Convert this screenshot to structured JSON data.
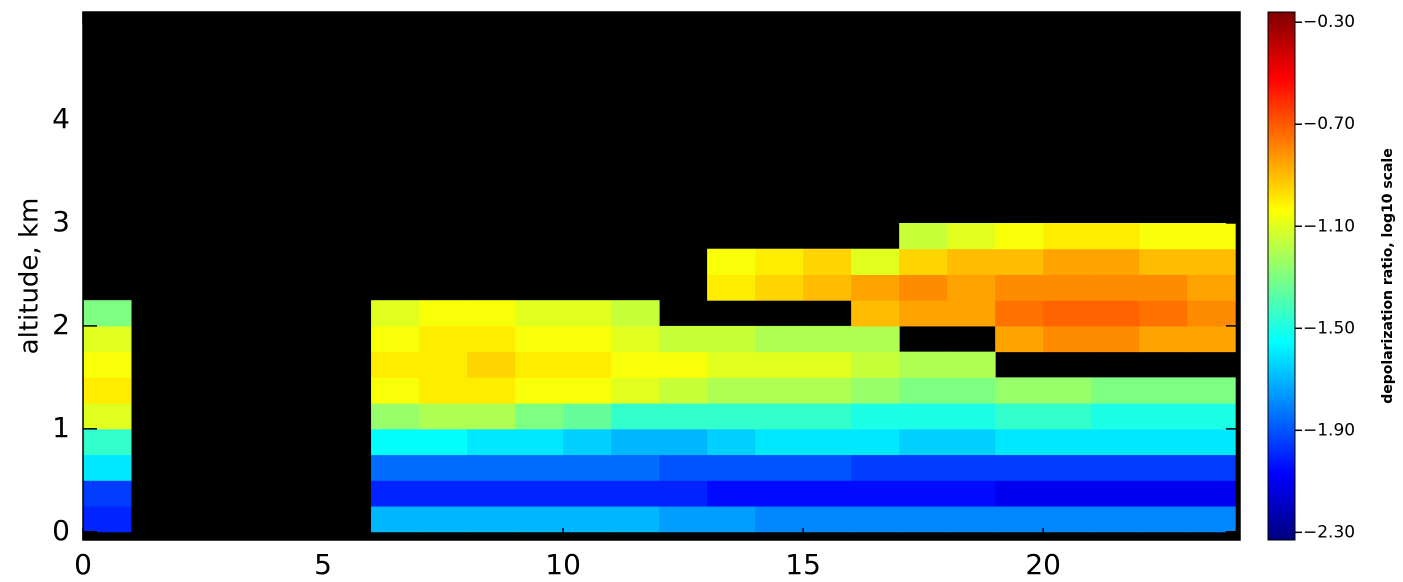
{
  "chart_data": {
    "type": "heatmap",
    "ylabel": "altitude, km",
    "colorbar_label": "depolarization ratio, log10 scale",
    "xlim": [
      0,
      24.1
    ],
    "xticks": [
      0,
      5,
      10,
      15,
      20
    ],
    "ylim": [
      -0.08,
      5.05
    ],
    "yticks": [
      0,
      1,
      2,
      3,
      4
    ],
    "x_edges": [
      0,
      1,
      2,
      3,
      4,
      5,
      6,
      7,
      8,
      9,
      10,
      11,
      12,
      13,
      14,
      15,
      16,
      17,
      18,
      19,
      20,
      21,
      22,
      23,
      24
    ],
    "y_edges": [
      0,
      0.25,
      0.5,
      0.75,
      1,
      1.25,
      1.5,
      1.75,
      2,
      2.25,
      2.5,
      2.75,
      3
    ],
    "clim": [
      -2.33,
      -0.26
    ],
    "cticks": [
      {
        "value": -0.3,
        "label": "−0.30"
      },
      {
        "value": -0.7,
        "label": "−0.70"
      },
      {
        "value": -1.1,
        "label": "−1.10"
      },
      {
        "value": -1.5,
        "label": "−1.50"
      },
      {
        "value": -1.9,
        "label": "−1.90"
      },
      {
        "value": -2.3,
        "label": "−2.30"
      }
    ],
    "colormap": "jet",
    "z": [
      [
        -2.0,
        null,
        null,
        null,
        null,
        null,
        -1.7,
        -1.7,
        -1.7,
        -1.7,
        -1.7,
        -1.7,
        -1.75,
        -1.75,
        -1.8,
        -1.8,
        -1.8,
        -1.8,
        -1.8,
        -1.8,
        -1.8,
        -1.8,
        -1.8,
        -1.8
      ],
      [
        -1.95,
        null,
        null,
        null,
        null,
        null,
        -2.0,
        -2.0,
        -2.0,
        -2.0,
        -2.0,
        -2.0,
        -2.0,
        -2.05,
        -2.05,
        -2.05,
        -2.05,
        -2.05,
        -2.05,
        -2.1,
        -2.1,
        -2.1,
        -2.1,
        -2.1
      ],
      [
        -1.6,
        null,
        null,
        null,
        null,
        null,
        -1.85,
        -1.85,
        -1.85,
        -1.85,
        -1.85,
        -1.85,
        -1.9,
        -1.9,
        -1.9,
        -1.9,
        -1.95,
        -1.95,
        -1.95,
        -1.95,
        -1.95,
        -1.95,
        -1.95,
        -1.95
      ],
      [
        -1.45,
        null,
        null,
        null,
        null,
        null,
        -1.55,
        -1.55,
        -1.6,
        -1.6,
        -1.65,
        -1.7,
        -1.7,
        -1.65,
        -1.6,
        -1.6,
        -1.6,
        -1.65,
        -1.65,
        -1.6,
        -1.6,
        -1.6,
        -1.6,
        -1.6
      ],
      [
        -1.1,
        null,
        null,
        null,
        null,
        null,
        -1.25,
        -1.2,
        -1.2,
        -1.3,
        -1.35,
        -1.45,
        -1.45,
        -1.45,
        -1.45,
        -1.45,
        -1.5,
        -1.5,
        -1.5,
        -1.45,
        -1.45,
        -1.5,
        -1.5,
        -1.5
      ],
      [
        -1.0,
        null,
        null,
        null,
        null,
        null,
        -1.05,
        -1.0,
        -1.0,
        -1.05,
        -1.05,
        -1.1,
        -1.15,
        -1.2,
        -1.2,
        -1.2,
        -1.25,
        -1.3,
        -1.3,
        -1.25,
        -1.25,
        -1.3,
        -1.3,
        -1.3
      ],
      [
        -1.05,
        null,
        null,
        null,
        null,
        null,
        -1.0,
        -1.0,
        -0.95,
        -1.0,
        -1.0,
        -1.05,
        -1.05,
        -1.1,
        -1.1,
        -1.1,
        -1.15,
        -1.2,
        -1.2,
        null,
        null,
        null,
        null,
        null
      ],
      [
        -1.1,
        null,
        null,
        null,
        null,
        null,
        -1.05,
        -1.0,
        -1.0,
        -1.05,
        -1.05,
        -1.1,
        -1.15,
        -1.15,
        -1.2,
        -1.2,
        -1.2,
        null,
        null,
        -0.85,
        -0.8,
        -0.8,
        -0.85,
        -0.85
      ],
      [
        -1.3,
        null,
        null,
        null,
        null,
        null,
        -1.1,
        -1.05,
        -1.05,
        -1.1,
        -1.1,
        -1.15,
        null,
        null,
        null,
        null,
        -0.9,
        -0.85,
        -0.85,
        -0.75,
        -0.72,
        -0.72,
        -0.75,
        -0.8
      ],
      [
        null,
        null,
        null,
        null,
        null,
        null,
        null,
        null,
        null,
        null,
        null,
        null,
        null,
        -1.0,
        -0.95,
        -0.9,
        -0.85,
        -0.8,
        -0.85,
        -0.8,
        -0.8,
        -0.8,
        -0.8,
        -0.85
      ],
      [
        null,
        null,
        null,
        null,
        null,
        null,
        null,
        null,
        null,
        null,
        null,
        null,
        null,
        -1.05,
        -1.0,
        -0.95,
        -1.1,
        -0.95,
        -0.9,
        -0.9,
        -0.85,
        -0.85,
        -0.9,
        -0.9
      ],
      [
        null,
        null,
        null,
        null,
        null,
        null,
        null,
        null,
        null,
        null,
        null,
        null,
        null,
        null,
        null,
        null,
        null,
        -1.15,
        -1.1,
        -1.05,
        -1.0,
        -1.0,
        -1.05,
        -1.05
      ]
    ]
  }
}
